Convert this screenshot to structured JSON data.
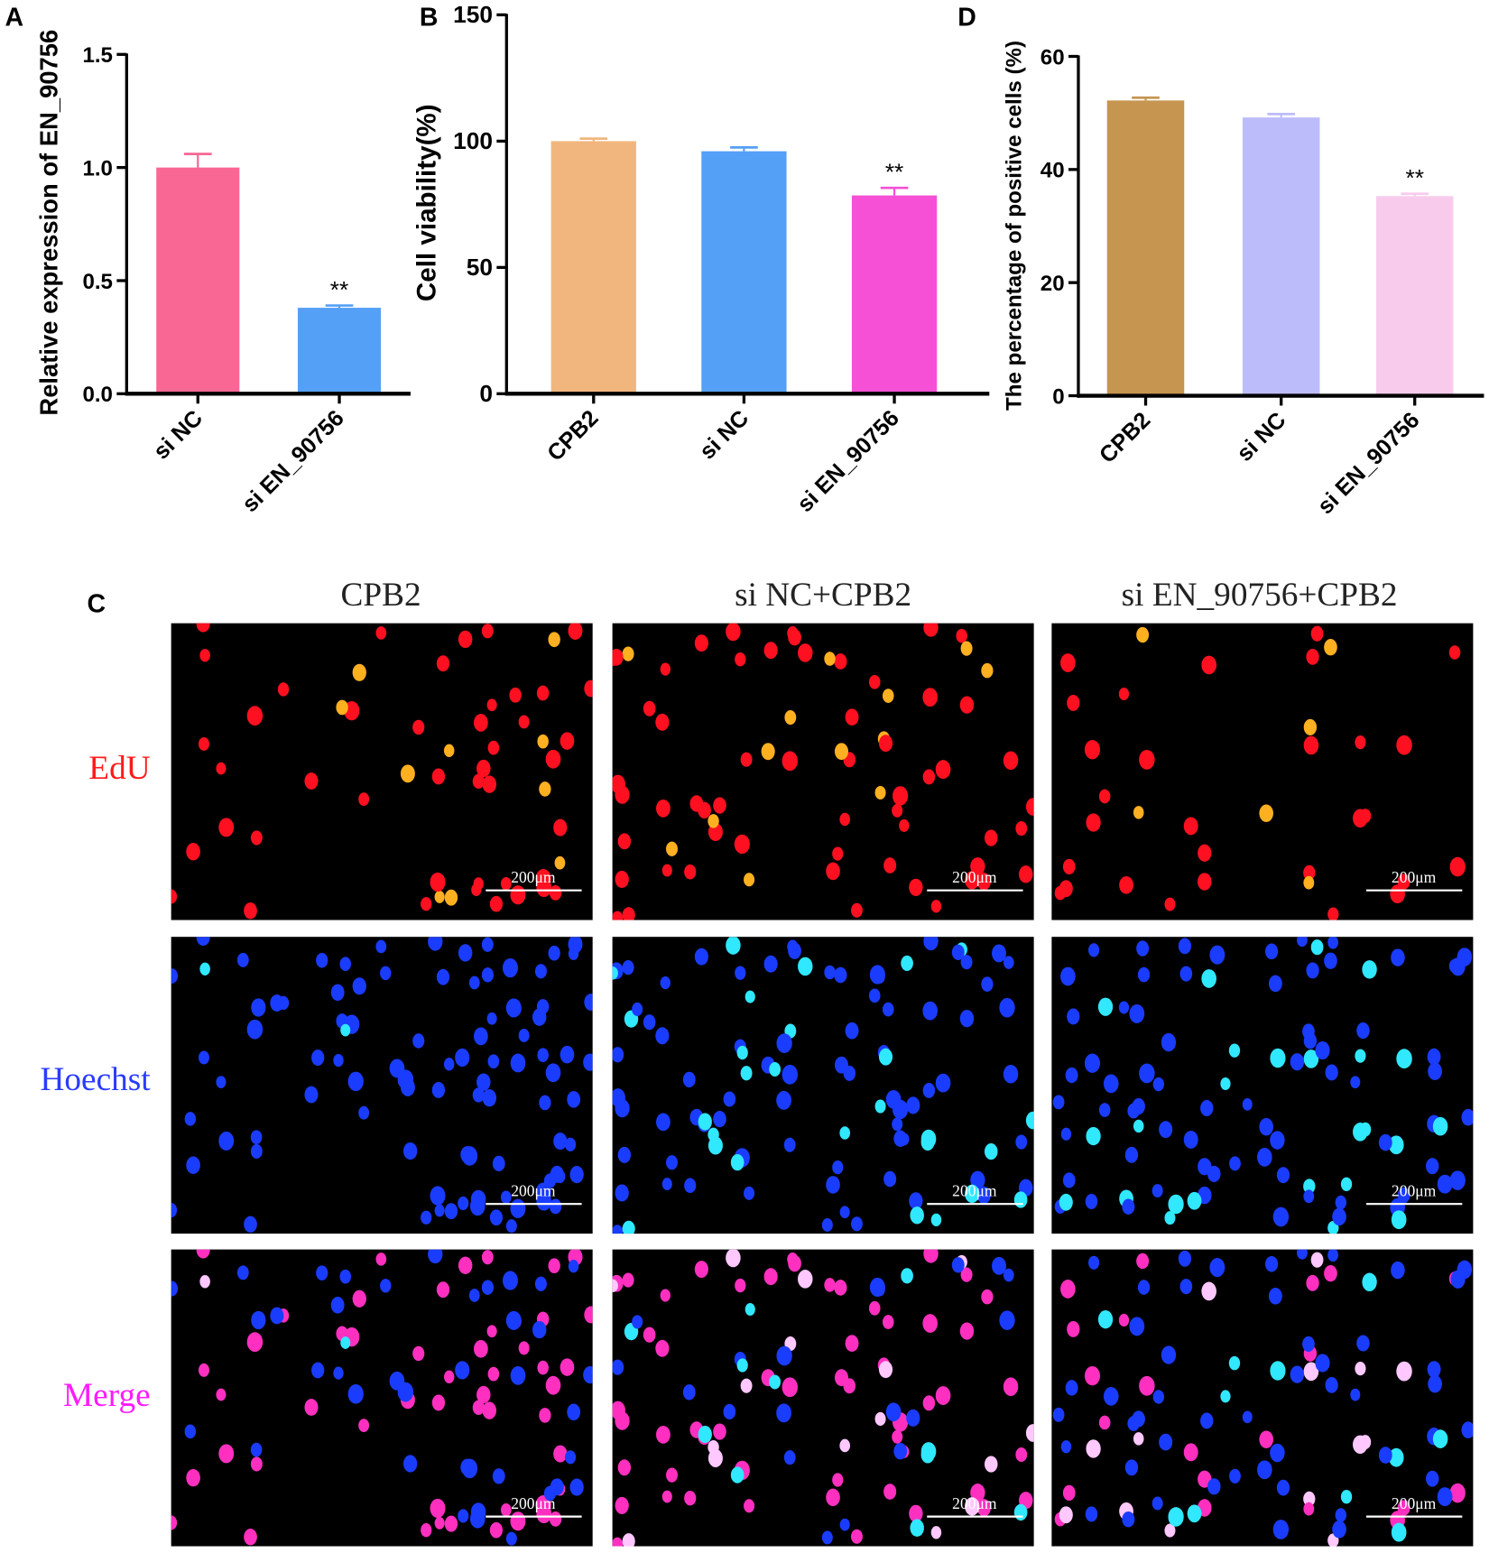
{
  "chart_data": [
    {
      "type": "bar",
      "panel": "A",
      "categories": [
        "si NC",
        "si EN_90756"
      ],
      "values": [
        1.0,
        0.38
      ],
      "errors": [
        0.06,
        0.01
      ],
      "significance": [
        "",
        "**"
      ],
      "colors": [
        "#f96794",
        "#55a0f7"
      ],
      "ylabel": "Relative expression of EN_90756",
      "ylim": [
        0,
        1.5
      ],
      "yticks": [
        "0.0",
        "0.5",
        "1.0",
        "1.5"
      ],
      "ytick_values": [
        0,
        0.5,
        1.0,
        1.5
      ]
    },
    {
      "type": "bar",
      "panel": "B",
      "categories": [
        "CPB2",
        "si NC",
        "si EN_90756"
      ],
      "values": [
        100,
        96,
        78.5
      ],
      "errors": [
        1,
        1.5,
        3
      ],
      "significance": [
        "",
        "",
        "**"
      ],
      "colors": [
        "#f1b67e",
        "#55a0f7",
        "#f550d6"
      ],
      "ylabel": "Cell viability(%)",
      "ylim": [
        0,
        150
      ],
      "yticks": [
        "0",
        "50",
        "100",
        "150"
      ],
      "ytick_values": [
        0,
        50,
        100,
        150
      ]
    },
    {
      "type": "bar",
      "panel": "D",
      "categories": [
        "CPB2",
        "si NC",
        "si EN_90756"
      ],
      "values": [
        52.2,
        49.2,
        35.3
      ],
      "errors": [
        0.5,
        0.6,
        0.4
      ],
      "significance": [
        "",
        "",
        "**"
      ],
      "colors": [
        "#c6954f",
        "#bdbcfb",
        "#f8cbec"
      ],
      "ylabel": "The percentage of positive cells (%)",
      "ylim": [
        0,
        60
      ],
      "yticks": [
        "0",
        "20",
        "40",
        "60"
      ],
      "ytick_values": [
        0,
        20,
        40,
        60
      ]
    }
  ],
  "panel_c": {
    "letter": "C",
    "columns": [
      "CPB2",
      "si NC+CPB2",
      "si EN_90756+CPB2"
    ],
    "rows": [
      {
        "label": "EdU",
        "color": "#ff1a1a"
      },
      {
        "label": "Hoechst",
        "color": "#2a3cff"
      },
      {
        "label": "Merge",
        "color": "#ff1aff"
      }
    ],
    "scale_bar": "200μm"
  }
}
